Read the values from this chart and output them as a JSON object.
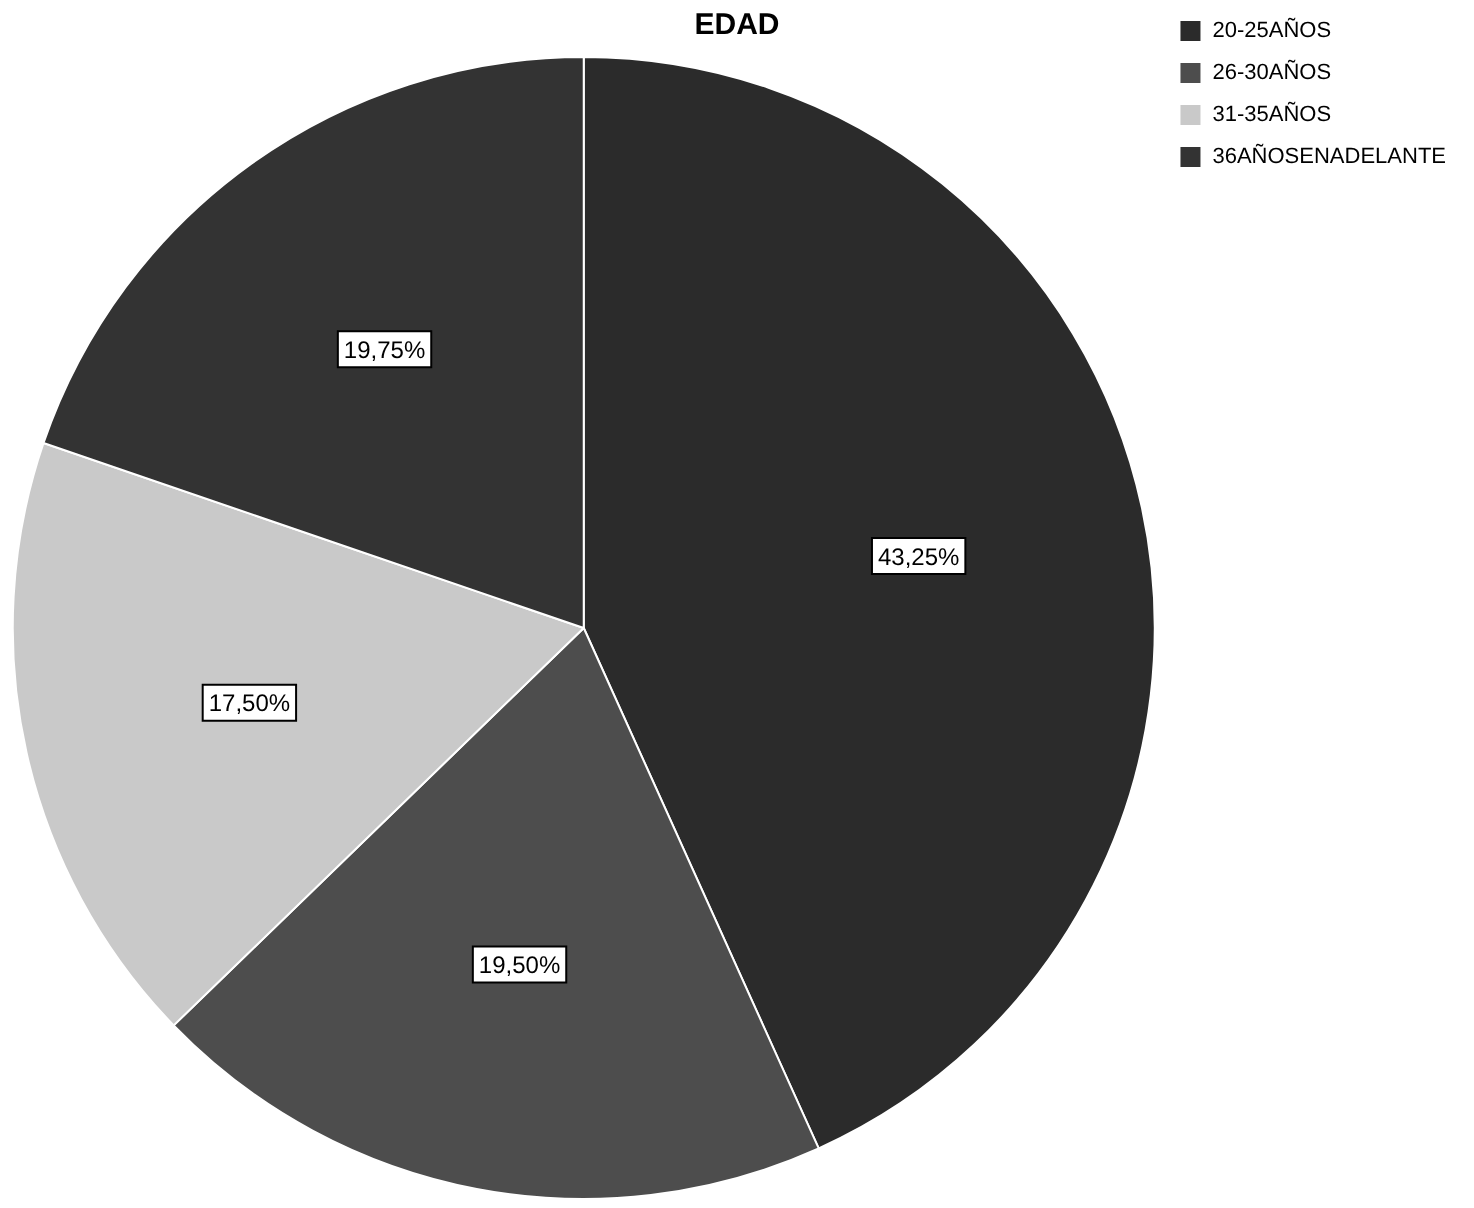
{
  "chart_data": {
    "type": "pie",
    "title": "EDAD",
    "categories": [
      "20-25AÑOS",
      "26-30AÑOS",
      "31-35AÑOS",
      "36AÑOSENADELANTE"
    ],
    "values": [
      43.25,
      19.5,
      17.5,
      19.75
    ],
    "colors": [
      "#2b2b2b",
      "#4d4d4d",
      "#c9c9c9",
      "#333333"
    ],
    "value_labels": [
      "43,25%",
      "19,50%",
      "17,50%",
      "19,75%"
    ],
    "legend": "top right"
  }
}
